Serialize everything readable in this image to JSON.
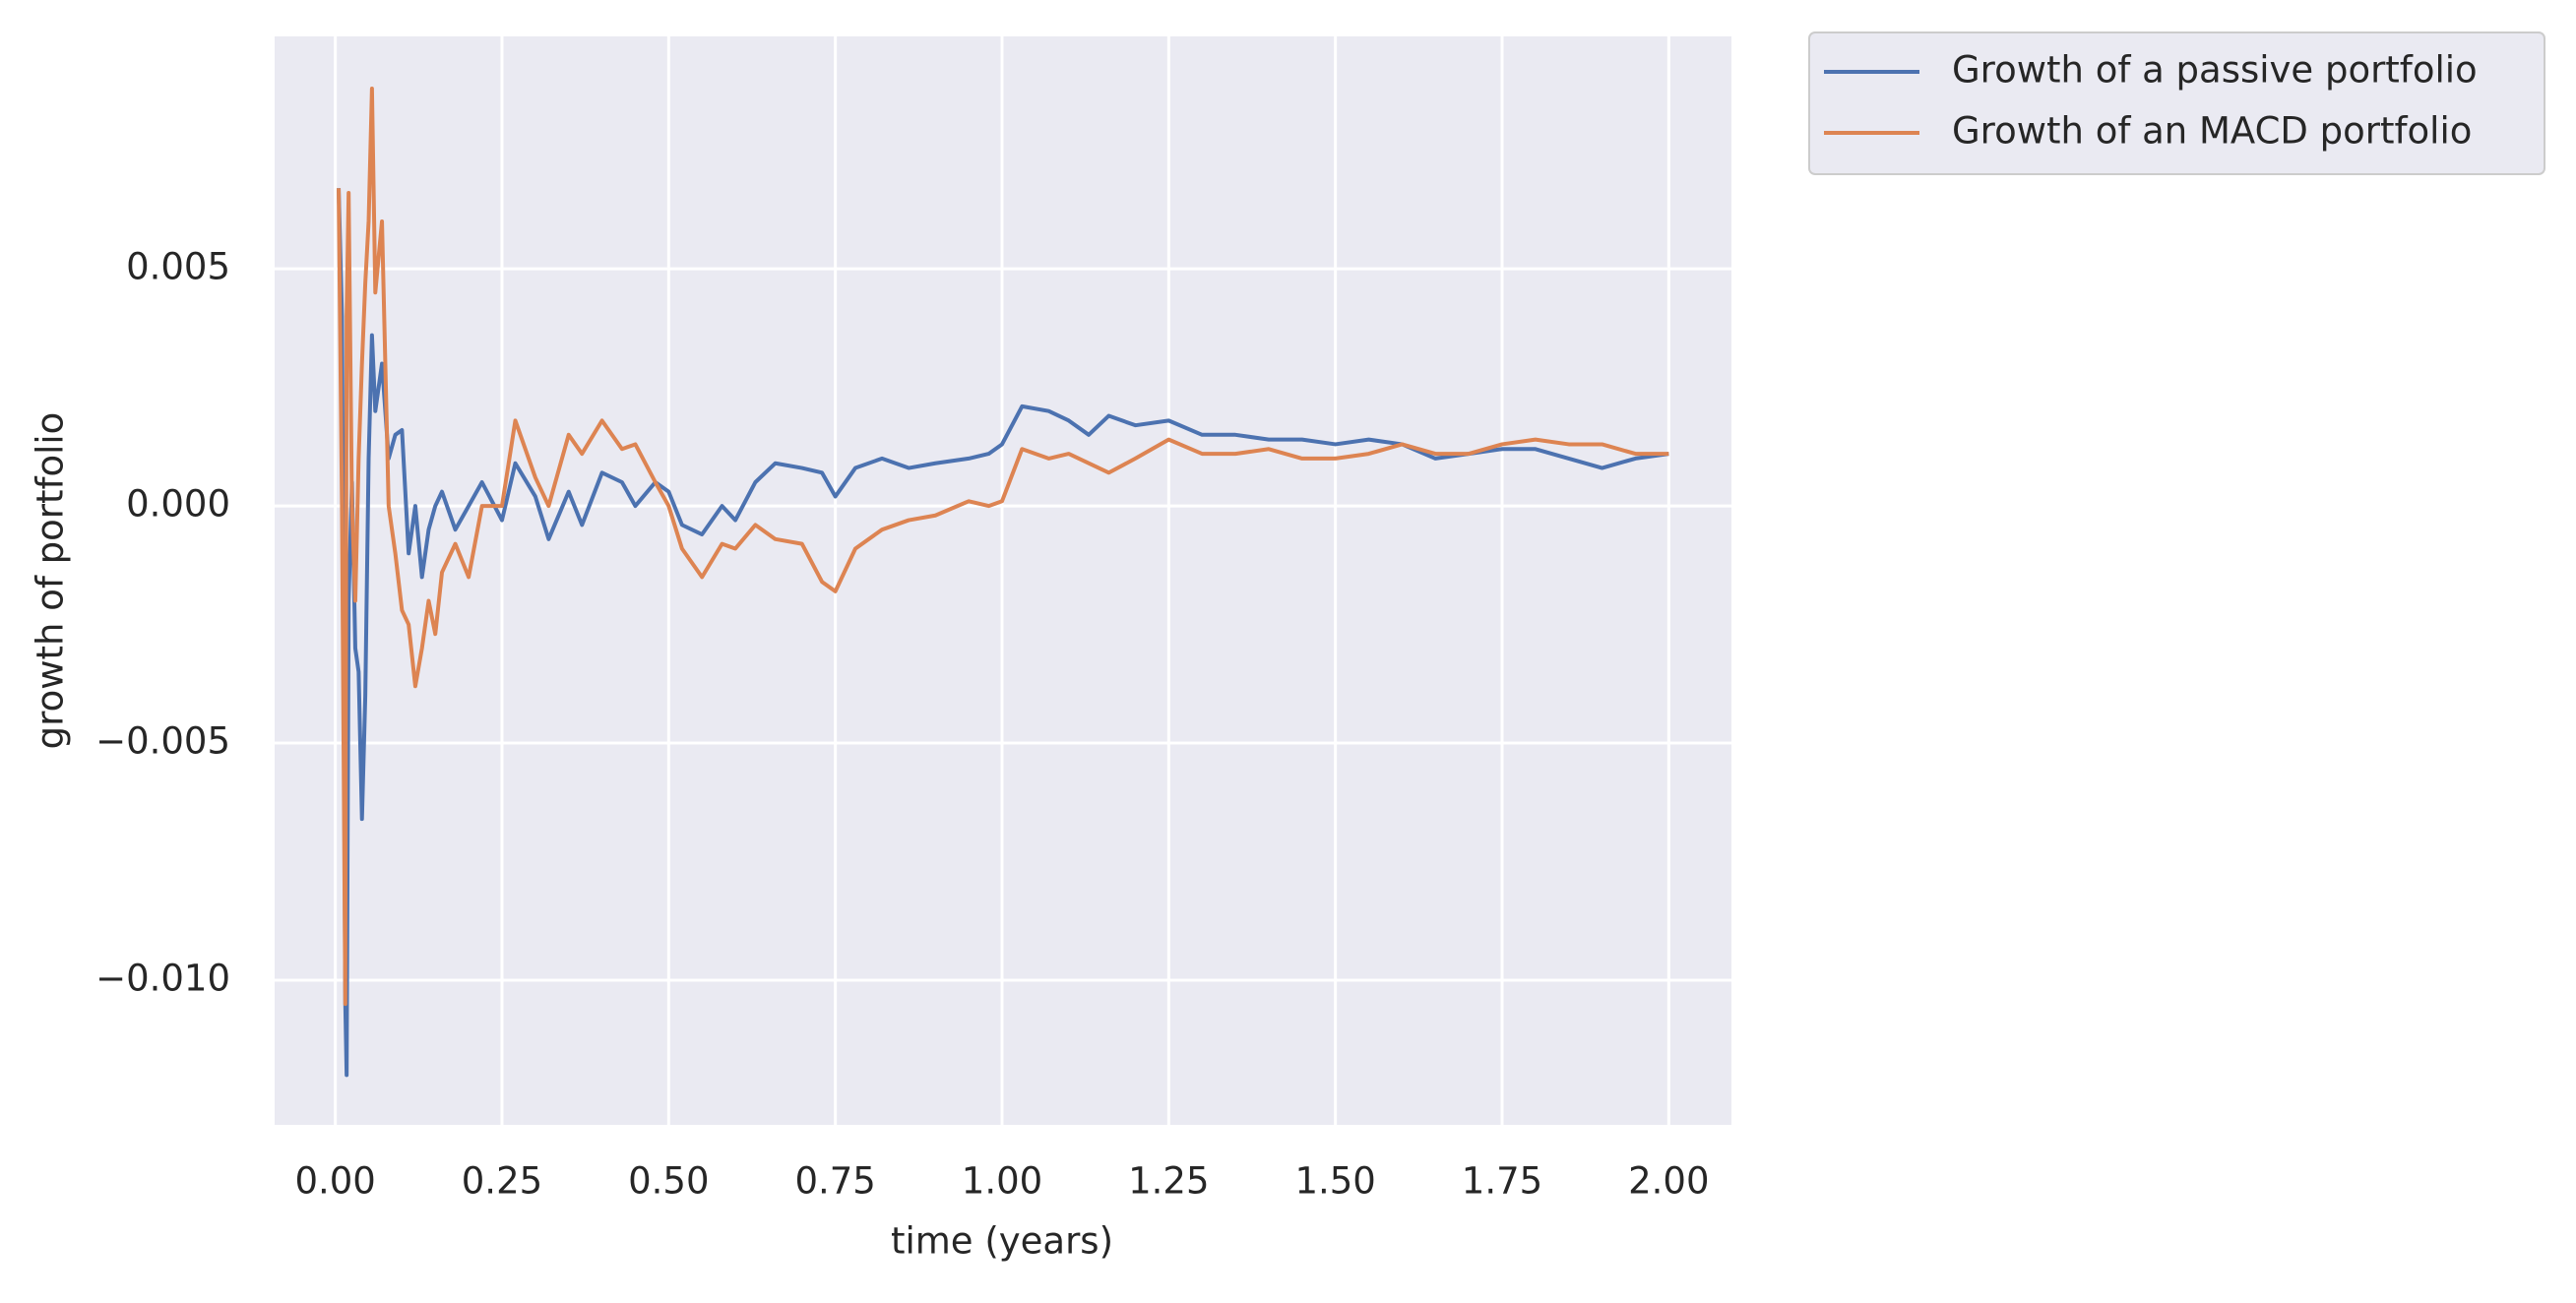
{
  "chart_data": {
    "type": "line",
    "x_label": "time (years)",
    "y_label": "growth of portfolio",
    "x": [
      0.005,
      0.01,
      0.015,
      0.017,
      0.02,
      0.025,
      0.03,
      0.035,
      0.04,
      0.045,
      0.05,
      0.055,
      0.06,
      0.07,
      0.08,
      0.09,
      0.1,
      0.11,
      0.12,
      0.13,
      0.14,
      0.15,
      0.16,
      0.18,
      0.2,
      0.22,
      0.25,
      0.27,
      0.3,
      0.32,
      0.35,
      0.37,
      0.4,
      0.43,
      0.45,
      0.48,
      0.5,
      0.52,
      0.55,
      0.58,
      0.6,
      0.63,
      0.66,
      0.7,
      0.73,
      0.75,
      0.78,
      0.82,
      0.86,
      0.9,
      0.95,
      0.98,
      1.0,
      1.03,
      1.07,
      1.1,
      1.13,
      1.16,
      1.2,
      1.25,
      1.3,
      1.35,
      1.4,
      1.45,
      1.5,
      1.55,
      1.6,
      1.65,
      1.7,
      1.75,
      1.8,
      1.85,
      1.9,
      1.95,
      2.0
    ],
    "series": [
      {
        "name": "Growth of a passive portfolio",
        "color": "#4c72b0",
        "values": [
          0.0067,
          0.004,
          -0.0105,
          -0.012,
          -0.002,
          0.0005,
          -0.003,
          -0.0035,
          -0.0066,
          -0.004,
          0.001,
          0.0036,
          0.002,
          0.003,
          0.001,
          0.0015,
          0.0016,
          -0.001,
          0.0,
          -0.0015,
          -0.0005,
          0.0,
          0.0003,
          -0.0005,
          0.0,
          0.0005,
          -0.0003,
          0.0009,
          0.0002,
          -0.0007,
          0.0003,
          -0.0004,
          0.0007,
          0.0005,
          0.0,
          0.0005,
          0.0003,
          -0.0004,
          -0.0006,
          0.0,
          -0.0003,
          0.0005,
          0.0009,
          0.0008,
          0.0007,
          0.0002,
          0.0008,
          0.001,
          0.0008,
          0.0009,
          0.001,
          0.0011,
          0.0013,
          0.0021,
          0.002,
          0.0018,
          0.0015,
          0.0019,
          0.0017,
          0.0018,
          0.0015,
          0.0015,
          0.0014,
          0.0014,
          0.0013,
          0.0014,
          0.0013,
          0.001,
          0.0011,
          0.0012,
          0.0012,
          0.001,
          0.0008,
          0.001,
          0.0011
        ]
      },
      {
        "name": "Growth of an MACD portfolio",
        "color": "#dd8452",
        "values": [
          0.0067,
          0.0,
          -0.0105,
          0.004,
          0.0066,
          0.0,
          -0.002,
          0.001,
          0.003,
          0.0047,
          0.006,
          0.0088,
          0.0045,
          0.006,
          0.0,
          -0.001,
          -0.0022,
          -0.0025,
          -0.0038,
          -0.003,
          -0.002,
          -0.0027,
          -0.0014,
          -0.0008,
          -0.0015,
          0.0,
          0.0,
          0.0018,
          0.0006,
          0.0,
          0.0015,
          0.0011,
          0.0018,
          0.0012,
          0.0013,
          0.0005,
          0.0,
          -0.0009,
          -0.0015,
          -0.0008,
          -0.0009,
          -0.0004,
          -0.0007,
          -0.0008,
          -0.0016,
          -0.0018,
          -0.0009,
          -0.0005,
          -0.0003,
          -0.0002,
          0.0001,
          0.0,
          0.0001,
          0.0012,
          0.001,
          0.0011,
          0.0009,
          0.0007,
          0.001,
          0.0014,
          0.0011,
          0.0011,
          0.0012,
          0.001,
          0.001,
          0.0011,
          0.0013,
          0.0011,
          0.0011,
          0.0013,
          0.0014,
          0.0013,
          0.0013,
          0.0011,
          0.0011
        ]
      }
    ],
    "xlim": [
      -0.091,
      2.094
    ],
    "xticks": [
      {
        "value": 0,
        "label": "0.00"
      },
      0.25,
      {
        "value": 0.5,
        "label": "0.50"
      },
      0.75,
      {
        "value": 1,
        "label": "1.00"
      },
      1.25,
      {
        "value": 1.5,
        "label": "1.50"
      },
      1.75,
      {
        "value": 2,
        "label": "2.00"
      }
    ],
    "ylim": [
      -0.01305,
      0.0099
    ],
    "yticks": [
      {
        "value": -0.01,
        "label": "−0.010"
      },
      {
        "value": -0.005,
        "label": "−0.005"
      },
      {
        "value": 0,
        "label": "0.000"
      },
      {
        "value": 0.005,
        "label": "0.005"
      }
    ],
    "grid": true,
    "legend": "outside upper right"
  }
}
